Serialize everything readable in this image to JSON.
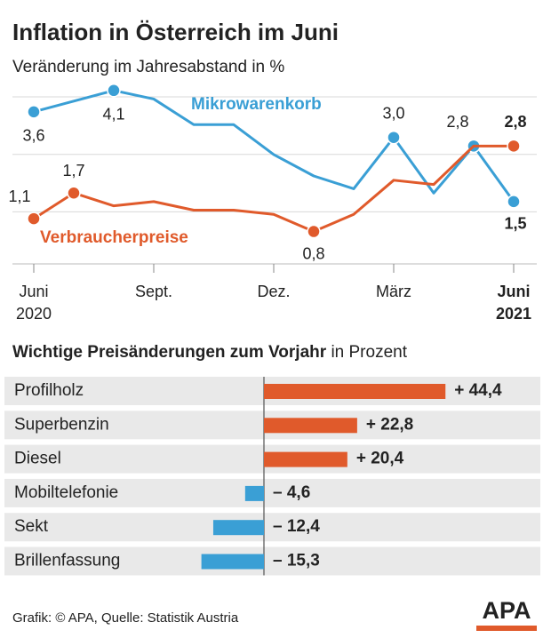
{
  "title": "Inflation in Österreich im Juni",
  "footer": "Grafik: © APA, Quelle: Statistik Austria",
  "logo": "APA",
  "chart_data": [
    {
      "type": "line",
      "subtitle": "Veränderung im Jahresabstand in %",
      "categories": [
        "Juni",
        null,
        null,
        "Sept.",
        null,
        null,
        "Dez.",
        null,
        null,
        "März",
        null,
        null,
        "Juni"
      ],
      "x_sublabels": [
        "2020",
        null,
        null,
        null,
        null,
        null,
        null,
        null,
        null,
        null,
        null,
        null,
        "2021"
      ],
      "ylim": [
        0,
        4.2
      ],
      "grid": true,
      "series": [
        {
          "name": "Mikrowarenkorb",
          "color": "#3a9fd5",
          "values": [
            3.6,
            3.85,
            4.1,
            3.9,
            3.3,
            3.3,
            2.6,
            2.1,
            1.8,
            3.0,
            1.7,
            2.8,
            1.5
          ],
          "value_labels": [
            "3,6",
            null,
            "4,1",
            null,
            null,
            null,
            null,
            null,
            null,
            "3,0",
            null,
            "2,8",
            "1,5"
          ]
        },
        {
          "name": "Verbraucherpreise",
          "color": "#e05a2b",
          "values": [
            1.1,
            1.7,
            1.4,
            1.5,
            1.3,
            1.3,
            1.2,
            0.8,
            1.2,
            2.0,
            1.9,
            2.8,
            2.8
          ],
          "value_labels": [
            "1,1",
            "1,7",
            null,
            null,
            null,
            null,
            null,
            "0,8",
            null,
            null,
            null,
            null,
            "2,8"
          ]
        }
      ]
    },
    {
      "type": "hbar",
      "title": "Wichtige Preisänderungen zum Vorjahr",
      "title_suffix": "in Prozent",
      "categories": [
        "Profilholz",
        "Superbenzin",
        "Diesel",
        "Mobiltelefonie",
        "Sekt",
        "Brillenfassung"
      ],
      "values": [
        44.4,
        22.8,
        20.4,
        -4.6,
        -12.4,
        -15.3
      ],
      "value_labels": [
        "+ 44,4",
        "+ 22,8",
        "+ 20,4",
        "– 4,6",
        "– 12,4",
        "– 15,3"
      ],
      "xlim": [
        -20,
        50
      ],
      "positive_color": "#e05a2b",
      "negative_color": "#3a9fd5"
    }
  ]
}
